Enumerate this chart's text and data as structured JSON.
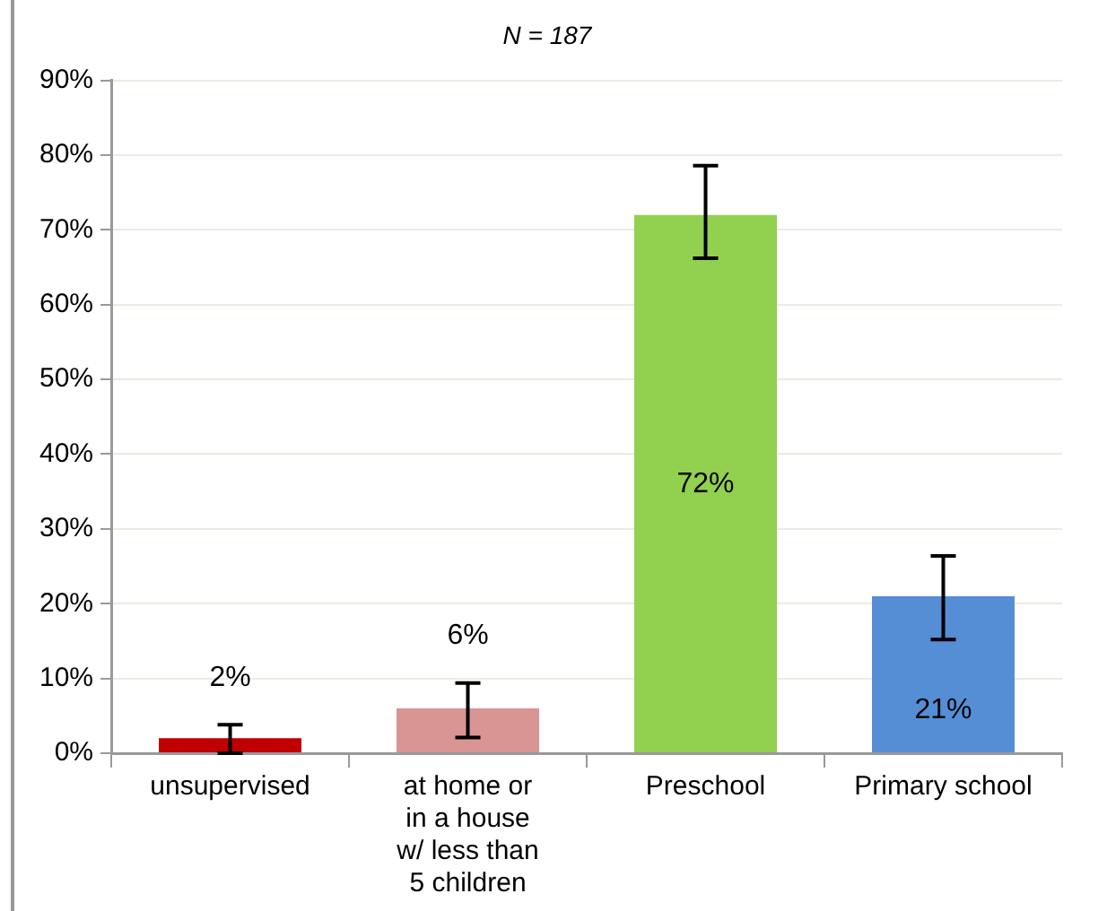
{
  "chart_data": {
    "type": "bar",
    "title": "N = 187",
    "categories": [
      "unsupervised",
      "at home or\nin a house\nw/ less than\n5 children",
      "Preschool",
      "Primary school"
    ],
    "values": [
      2,
      6,
      72,
      21
    ],
    "colors": [
      "#c00000",
      "#d99594",
      "#92d050",
      "#558ed5"
    ],
    "errors": [
      [
        0,
        3.8
      ],
      [
        2.1,
        9.4
      ],
      [
        66.2,
        78.6
      ],
      [
        15.2,
        26.4
      ]
    ],
    "ylim": [
      0,
      90
    ],
    "yticks": [
      {
        "value": 0,
        "label": "0%"
      },
      {
        "value": 10,
        "label": "10%"
      },
      {
        "value": 20,
        "label": "20%"
      },
      {
        "value": 30,
        "label": "30%"
      },
      {
        "value": 40,
        "label": "40%"
      },
      {
        "value": 50,
        "label": "50%"
      },
      {
        "value": 60,
        "label": "60%"
      },
      {
        "value": 70,
        "label": "70%"
      },
      {
        "value": 80,
        "label": "80%"
      },
      {
        "value": 90,
        "label": "90%"
      }
    ],
    "value_labels": [
      "2%",
      "6%",
      "72%",
      "21%"
    ],
    "grid": "y",
    "legend": false
  }
}
